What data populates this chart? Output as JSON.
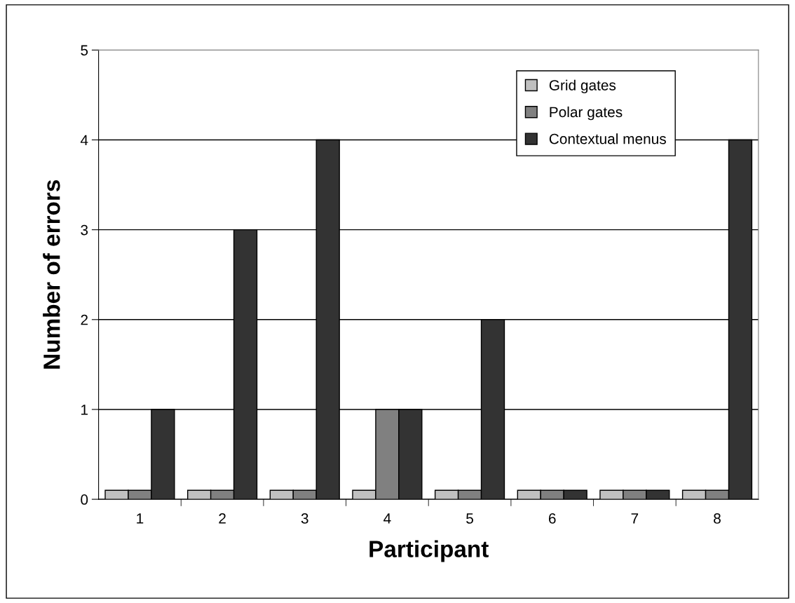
{
  "chart_data": {
    "type": "bar",
    "xlabel": "Participant",
    "ylabel": "Number of errors",
    "categories": [
      "1",
      "2",
      "3",
      "4",
      "5",
      "6",
      "7",
      "8"
    ],
    "series": [
      {
        "name": "Grid gates",
        "color": "#c0c0c0",
        "values": [
          0.1,
          0.1,
          0.1,
          0.1,
          0.1,
          0.1,
          0.1,
          0.1
        ]
      },
      {
        "name": "Polar gates",
        "color": "#808080",
        "values": [
          0.1,
          0.1,
          0.1,
          1,
          0.1,
          0.1,
          0.1,
          0.1
        ]
      },
      {
        "name": "Contextual menus",
        "color": "#333333",
        "values": [
          1,
          3,
          4,
          1,
          2,
          0.1,
          0.1,
          4
        ]
      }
    ],
    "ylim": [
      0,
      5
    ],
    "yticks": [
      0,
      1,
      2,
      3,
      4,
      5
    ],
    "grid": "y",
    "legend": "top right"
  }
}
